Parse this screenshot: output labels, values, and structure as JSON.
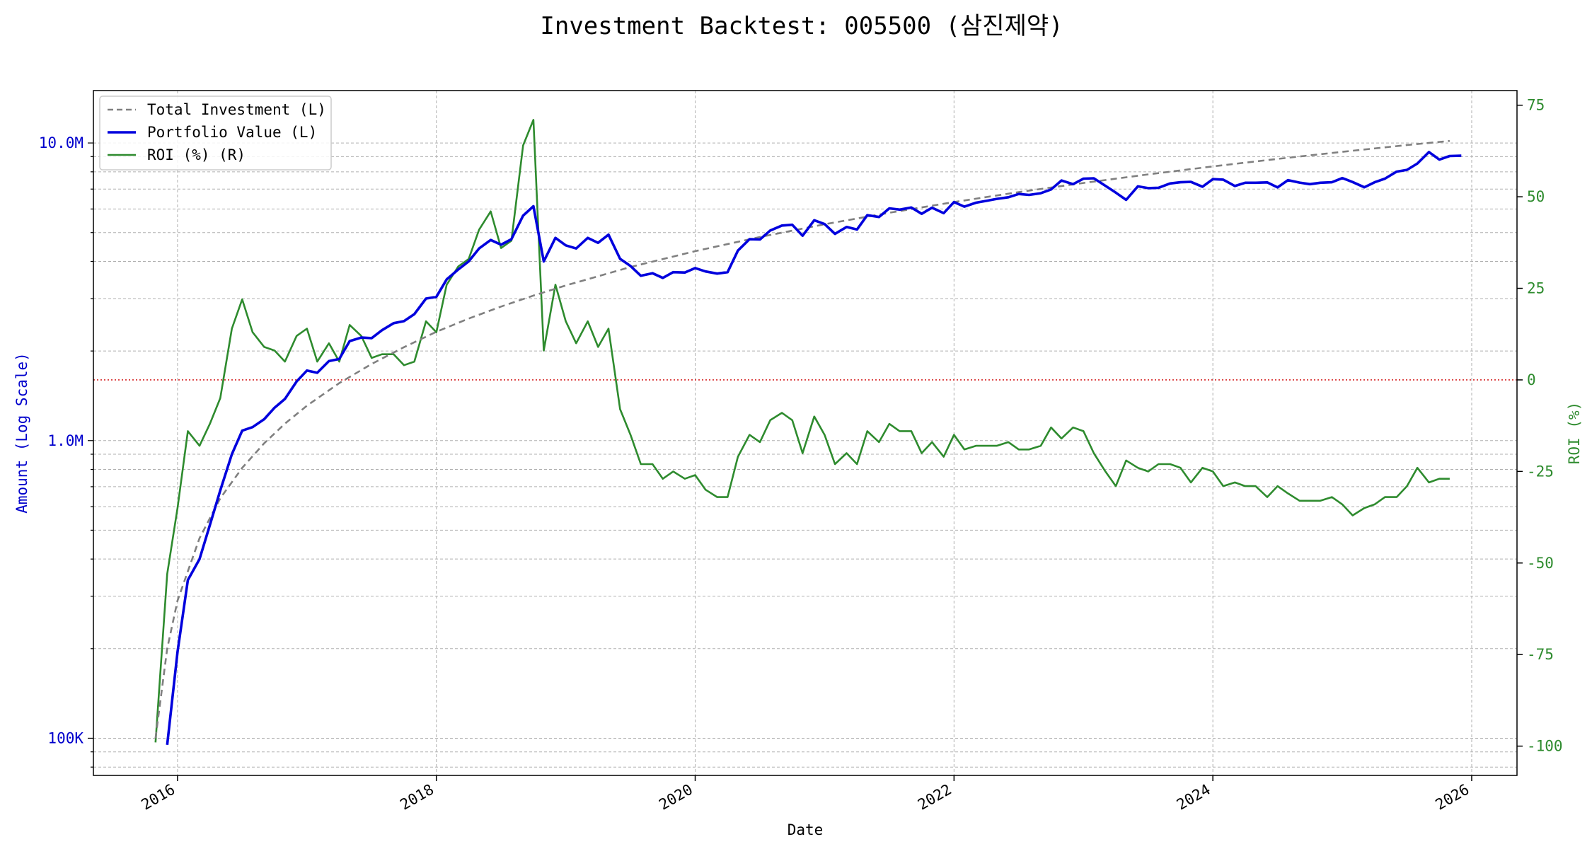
{
  "chart_data": {
    "type": "line",
    "title": "Investment Backtest: 005500 (삼진제약)",
    "xlabel": "Date",
    "ylabel_left": "Amount (Log Scale)",
    "ylabel_right": "ROI (%)",
    "x_ticks": [
      "2016",
      "2018",
      "2020",
      "2022",
      "2024",
      "2026"
    ],
    "left_ticks": [
      {
        "value": 100000,
        "label": "100K"
      },
      {
        "value": 1000000,
        "label": "1.0M"
      },
      {
        "value": 10000000,
        "label": "10.0M"
      }
    ],
    "right_ticks": [
      -100,
      -75,
      -50,
      -25,
      0,
      25,
      50,
      75
    ],
    "xlim": [
      2015.35,
      2026.35
    ],
    "ylim_left": [
      75000,
      15000000
    ],
    "ylim_right": [
      -108,
      79
    ],
    "left_scale": "log",
    "grid": true,
    "legend_position": "top-left",
    "zero_line": {
      "value": 0,
      "axis": "right",
      "color": "#d62728",
      "style": "dotted"
    },
    "colors": {
      "investment": "#808080",
      "portfolio": "#0000dd",
      "roi": "#2e8b2e",
      "left_axis": "#0000cc",
      "right_axis": "#2e8b2e"
    },
    "series": [
      {
        "name": "Total Investment (L)",
        "axis": "left",
        "style": "dashed",
        "points": [
          [
            2015.83,
            100000
          ],
          [
            2015.92,
            200000
          ],
          [
            2016.0,
            290000
          ],
          [
            2016.17,
            470000
          ],
          [
            2016.33,
            640000
          ],
          [
            2016.5,
            810000
          ],
          [
            2016.67,
            980000
          ],
          [
            2016.83,
            1140000
          ],
          [
            2017.0,
            1310000
          ],
          [
            2017.25,
            1560000
          ],
          [
            2017.5,
            1810000
          ],
          [
            2017.75,
            2060000
          ],
          [
            2018.0,
            2320000
          ],
          [
            2018.25,
            2570000
          ],
          [
            2018.5,
            2820000
          ],
          [
            2018.75,
            3070000
          ],
          [
            2019.0,
            3320000
          ],
          [
            2019.5,
            3830000
          ],
          [
            2020.0,
            4330000
          ],
          [
            2020.5,
            4830000
          ],
          [
            2021.0,
            5330000
          ],
          [
            2021.5,
            5830000
          ],
          [
            2022.0,
            6330000
          ],
          [
            2022.5,
            6840000
          ],
          [
            2023.0,
            7340000
          ],
          [
            2023.5,
            7840000
          ],
          [
            2024.0,
            8340000
          ],
          [
            2024.5,
            8840000
          ],
          [
            2025.0,
            9340000
          ],
          [
            2025.5,
            9840000
          ],
          [
            2025.83,
            10160000
          ]
        ]
      },
      {
        "name": "Portfolio Value (L)",
        "axis": "left",
        "style": "solid",
        "points": [
          [
            2015.92,
            95000
          ],
          [
            2016.0,
            195000
          ],
          [
            2016.08,
            340000
          ],
          [
            2016.17,
            400000
          ],
          [
            2016.25,
            520000
          ],
          [
            2016.33,
            680000
          ],
          [
            2016.42,
            900000
          ],
          [
            2016.5,
            1080000
          ],
          [
            2016.58,
            1110000
          ],
          [
            2016.67,
            1180000
          ],
          [
            2016.75,
            1290000
          ],
          [
            2016.83,
            1380000
          ],
          [
            2016.92,
            1580000
          ],
          [
            2017.0,
            1720000
          ],
          [
            2017.08,
            1690000
          ],
          [
            2017.17,
            1850000
          ],
          [
            2017.25,
            1880000
          ],
          [
            2017.33,
            2160000
          ],
          [
            2017.42,
            2220000
          ],
          [
            2017.5,
            2210000
          ],
          [
            2017.58,
            2350000
          ],
          [
            2017.67,
            2480000
          ],
          [
            2017.75,
            2520000
          ],
          [
            2017.83,
            2660000
          ],
          [
            2017.92,
            3000000
          ],
          [
            2018.0,
            3040000
          ],
          [
            2018.08,
            3480000
          ],
          [
            2018.17,
            3760000
          ],
          [
            2018.25,
            4000000
          ],
          [
            2018.33,
            4420000
          ],
          [
            2018.42,
            4720000
          ],
          [
            2018.5,
            4550000
          ],
          [
            2018.58,
            4750000
          ],
          [
            2018.67,
            5700000
          ],
          [
            2018.75,
            6130000
          ],
          [
            2018.83,
            4000000
          ],
          [
            2018.92,
            4800000
          ],
          [
            2019.0,
            4530000
          ],
          [
            2019.08,
            4420000
          ],
          [
            2019.17,
            4800000
          ],
          [
            2019.25,
            4620000
          ],
          [
            2019.33,
            4920000
          ],
          [
            2019.42,
            4080000
          ],
          [
            2019.5,
            3860000
          ],
          [
            2019.58,
            3580000
          ],
          [
            2019.67,
            3650000
          ],
          [
            2019.75,
            3520000
          ],
          [
            2019.83,
            3680000
          ],
          [
            2019.92,
            3670000
          ],
          [
            2020.0,
            3800000
          ],
          [
            2020.08,
            3700000
          ],
          [
            2020.17,
            3640000
          ],
          [
            2020.25,
            3680000
          ],
          [
            2020.33,
            4350000
          ],
          [
            2020.42,
            4750000
          ],
          [
            2020.5,
            4740000
          ],
          [
            2020.58,
            5080000
          ],
          [
            2020.67,
            5280000
          ],
          [
            2020.75,
            5310000
          ],
          [
            2020.83,
            4880000
          ],
          [
            2020.92,
            5500000
          ],
          [
            2021.0,
            5340000
          ],
          [
            2021.08,
            4950000
          ],
          [
            2021.17,
            5220000
          ],
          [
            2021.25,
            5120000
          ],
          [
            2021.33,
            5720000
          ],
          [
            2021.42,
            5640000
          ],
          [
            2021.5,
            6030000
          ],
          [
            2021.58,
            5970000
          ],
          [
            2021.67,
            6070000
          ],
          [
            2021.75,
            5780000
          ],
          [
            2021.83,
            6060000
          ],
          [
            2021.92,
            5810000
          ],
          [
            2022.0,
            6330000
          ],
          [
            2022.08,
            6110000
          ],
          [
            2022.17,
            6300000
          ],
          [
            2022.25,
            6390000
          ],
          [
            2022.33,
            6490000
          ],
          [
            2022.42,
            6570000
          ],
          [
            2022.5,
            6740000
          ],
          [
            2022.58,
            6690000
          ],
          [
            2022.67,
            6780000
          ],
          [
            2022.75,
            6980000
          ],
          [
            2022.83,
            7480000
          ],
          [
            2022.92,
            7270000
          ],
          [
            2023.0,
            7590000
          ],
          [
            2023.08,
            7610000
          ],
          [
            2023.17,
            7180000
          ],
          [
            2023.25,
            6810000
          ],
          [
            2023.33,
            6440000
          ],
          [
            2023.42,
            7150000
          ],
          [
            2023.5,
            7050000
          ],
          [
            2023.58,
            7070000
          ],
          [
            2023.67,
            7310000
          ],
          [
            2023.75,
            7380000
          ],
          [
            2023.83,
            7400000
          ],
          [
            2023.92,
            7130000
          ],
          [
            2024.0,
            7560000
          ],
          [
            2024.08,
            7530000
          ],
          [
            2024.17,
            7170000
          ],
          [
            2024.25,
            7350000
          ],
          [
            2024.33,
            7350000
          ],
          [
            2024.42,
            7370000
          ],
          [
            2024.5,
            7090000
          ],
          [
            2024.58,
            7500000
          ],
          [
            2024.67,
            7360000
          ],
          [
            2024.75,
            7270000
          ],
          [
            2024.83,
            7350000
          ],
          [
            2024.92,
            7380000
          ],
          [
            2025.0,
            7620000
          ],
          [
            2025.08,
            7390000
          ],
          [
            2025.17,
            7100000
          ],
          [
            2025.25,
            7380000
          ],
          [
            2025.33,
            7590000
          ],
          [
            2025.42,
            8010000
          ],
          [
            2025.5,
            8120000
          ],
          [
            2025.58,
            8530000
          ],
          [
            2025.67,
            9320000
          ],
          [
            2025.75,
            8790000
          ],
          [
            2025.83,
            9040000
          ],
          [
            2025.92,
            9060000
          ]
        ]
      },
      {
        "name": "ROI (%) (R)",
        "axis": "right",
        "style": "solid",
        "points": [
          [
            2015.83,
            -99
          ],
          [
            2015.92,
            -53
          ],
          [
            2016.0,
            -35
          ],
          [
            2016.08,
            -14
          ],
          [
            2016.17,
            -18
          ],
          [
            2016.25,
            -12
          ],
          [
            2016.33,
            -5
          ],
          [
            2016.42,
            14
          ],
          [
            2016.5,
            22
          ],
          [
            2016.58,
            13
          ],
          [
            2016.67,
            9
          ],
          [
            2016.75,
            8
          ],
          [
            2016.83,
            5
          ],
          [
            2016.92,
            12
          ],
          [
            2017.0,
            14
          ],
          [
            2017.08,
            5
          ],
          [
            2017.17,
            10
          ],
          [
            2017.25,
            5
          ],
          [
            2017.33,
            15
          ],
          [
            2017.42,
            12
          ],
          [
            2017.5,
            6
          ],
          [
            2017.58,
            7
          ],
          [
            2017.67,
            7
          ],
          [
            2017.75,
            4
          ],
          [
            2017.83,
            5
          ],
          [
            2017.92,
            16
          ],
          [
            2018.0,
            13
          ],
          [
            2018.08,
            26
          ],
          [
            2018.17,
            31
          ],
          [
            2018.25,
            33
          ],
          [
            2018.33,
            41
          ],
          [
            2018.42,
            46
          ],
          [
            2018.5,
            36
          ],
          [
            2018.58,
            38
          ],
          [
            2018.67,
            64
          ],
          [
            2018.75,
            71
          ],
          [
            2018.83,
            8
          ],
          [
            2018.92,
            26
          ],
          [
            2019.0,
            16
          ],
          [
            2019.08,
            10
          ],
          [
            2019.17,
            16
          ],
          [
            2019.25,
            9
          ],
          [
            2019.33,
            14
          ],
          [
            2019.42,
            -8
          ],
          [
            2019.5,
            -15
          ],
          [
            2019.58,
            -23
          ],
          [
            2019.67,
            -23
          ],
          [
            2019.75,
            -27
          ],
          [
            2019.83,
            -25
          ],
          [
            2019.92,
            -27
          ],
          [
            2020.0,
            -26
          ],
          [
            2020.08,
            -30
          ],
          [
            2020.17,
            -32
          ],
          [
            2020.25,
            -32
          ],
          [
            2020.33,
            -21
          ],
          [
            2020.42,
            -15
          ],
          [
            2020.5,
            -17
          ],
          [
            2020.58,
            -11
          ],
          [
            2020.67,
            -9
          ],
          [
            2020.75,
            -11
          ],
          [
            2020.83,
            -20
          ],
          [
            2020.92,
            -10
          ],
          [
            2021.0,
            -15
          ],
          [
            2021.08,
            -23
          ],
          [
            2021.17,
            -20
          ],
          [
            2021.25,
            -23
          ],
          [
            2021.33,
            -14
          ],
          [
            2021.42,
            -17
          ],
          [
            2021.5,
            -12
          ],
          [
            2021.58,
            -14
          ],
          [
            2021.67,
            -14
          ],
          [
            2021.75,
            -20
          ],
          [
            2021.83,
            -17
          ],
          [
            2021.92,
            -21
          ],
          [
            2022.0,
            -15
          ],
          [
            2022.08,
            -19
          ],
          [
            2022.17,
            -18
          ],
          [
            2022.25,
            -18
          ],
          [
            2022.33,
            -18
          ],
          [
            2022.42,
            -17
          ],
          [
            2022.5,
            -19
          ],
          [
            2022.58,
            -19
          ],
          [
            2022.67,
            -18
          ],
          [
            2022.75,
            -13
          ],
          [
            2022.83,
            -16
          ],
          [
            2022.92,
            -13
          ],
          [
            2023.0,
            -14
          ],
          [
            2023.08,
            -20
          ],
          [
            2023.17,
            -25
          ],
          [
            2023.25,
            -29
          ],
          [
            2023.33,
            -22
          ],
          [
            2023.42,
            -24
          ],
          [
            2023.5,
            -25
          ],
          [
            2023.58,
            -23
          ],
          [
            2023.67,
            -23
          ],
          [
            2023.75,
            -24
          ],
          [
            2023.83,
            -28
          ],
          [
            2023.92,
            -24
          ],
          [
            2024.0,
            -25
          ],
          [
            2024.08,
            -29
          ],
          [
            2024.17,
            -28
          ],
          [
            2024.25,
            -29
          ],
          [
            2024.33,
            -29
          ],
          [
            2024.42,
            -32
          ],
          [
            2024.5,
            -29
          ],
          [
            2024.58,
            -31
          ],
          [
            2024.67,
            -33
          ],
          [
            2024.75,
            -33
          ],
          [
            2024.83,
            -33
          ],
          [
            2024.92,
            -32
          ],
          [
            2025.0,
            -34
          ],
          [
            2025.08,
            -37
          ],
          [
            2025.17,
            -35
          ],
          [
            2025.25,
            -34
          ],
          [
            2025.33,
            -32
          ],
          [
            2025.42,
            -32
          ],
          [
            2025.5,
            -29
          ],
          [
            2025.58,
            -24
          ],
          [
            2025.67,
            -28
          ],
          [
            2025.75,
            -27
          ],
          [
            2025.83,
            -27
          ]
        ]
      }
    ]
  }
}
